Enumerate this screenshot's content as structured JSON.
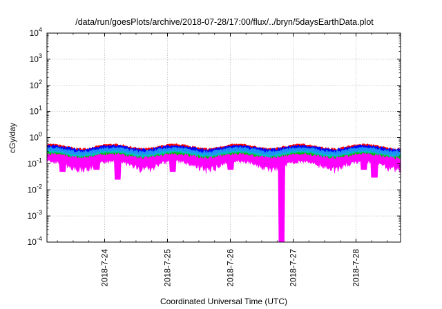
{
  "chart_data": {
    "type": "line",
    "title": "/data/run/goesPlots/archive/2018-07-28/17:00/flux/../bryn/5daysEarthData.plot",
    "xlabel": "Coordinated Universal Time (UTC)",
    "ylabel": "cGy/day",
    "xscale": "time",
    "yscale": "log",
    "xlim": [
      "2018-07-23T02:00",
      "2018-07-28T17:00"
    ],
    "ylim": [
      0.0001,
      10000
    ],
    "grid": true,
    "x_ticks": [
      {
        "value": "2018-07-24T00:00",
        "label": "2018-7-24"
      },
      {
        "value": "2018-07-25T00:00",
        "label": "2018-7-25"
      },
      {
        "value": "2018-07-26T00:00",
        "label": "2018-7-26"
      },
      {
        "value": "2018-07-27T00:00",
        "label": "2018-7-27"
      },
      {
        "value": "2018-07-28T00:00",
        "label": "2018-7-28"
      }
    ],
    "y_ticks": [
      {
        "value": 0.0001,
        "base": "10",
        "exp": "-4"
      },
      {
        "value": 0.001,
        "base": "10",
        "exp": "-3"
      },
      {
        "value": 0.01,
        "base": "10",
        "exp": "-2"
      },
      {
        "value": 0.1,
        "base": "10",
        "exp": "-1"
      },
      {
        "value": 1,
        "base": "10",
        "exp": "0"
      },
      {
        "value": 10,
        "base": "10",
        "exp": "1"
      },
      {
        "value": 100,
        "base": "10",
        "exp": "2"
      },
      {
        "value": 1000,
        "base": "10",
        "exp": "3"
      },
      {
        "value": 10000,
        "base": "10",
        "exp": "4"
      }
    ],
    "series": [
      {
        "color": "#ff0000",
        "base": 0.36,
        "spread": 0.1
      },
      {
        "color": "#0000ff",
        "base": 0.3,
        "spread": 0.12
      },
      {
        "color": "#1e90ff",
        "base": 0.25,
        "spread": 0.1
      },
      {
        "color": "#00bfbf",
        "base": 0.2,
        "spread": 0.06
      },
      {
        "color": "#00c000",
        "base": 0.17,
        "spread": 0.05
      },
      {
        "color": "#ff00ff",
        "base": 0.13,
        "spread": 0.07
      }
    ],
    "dips": [
      {
        "time": "2018-07-23T08:00",
        "value": 0.05
      },
      {
        "time": "2018-07-23T21:00",
        "value": 0.06
      },
      {
        "time": "2018-07-24T05:00",
        "value": 0.025
      },
      {
        "time": "2018-07-24T18:00",
        "value": 0.07
      },
      {
        "time": "2018-07-25T02:00",
        "value": 0.05
      },
      {
        "time": "2018-07-25T15:00",
        "value": 0.07
      },
      {
        "time": "2018-07-26T00:00",
        "value": 0.06
      },
      {
        "time": "2018-07-26T19:30",
        "value": 0.0001
      },
      {
        "time": "2018-07-27T14:00",
        "value": 0.07
      },
      {
        "time": "2018-07-28T03:00",
        "value": 0.06
      },
      {
        "time": "2018-07-28T07:00",
        "value": 0.03
      }
    ]
  }
}
